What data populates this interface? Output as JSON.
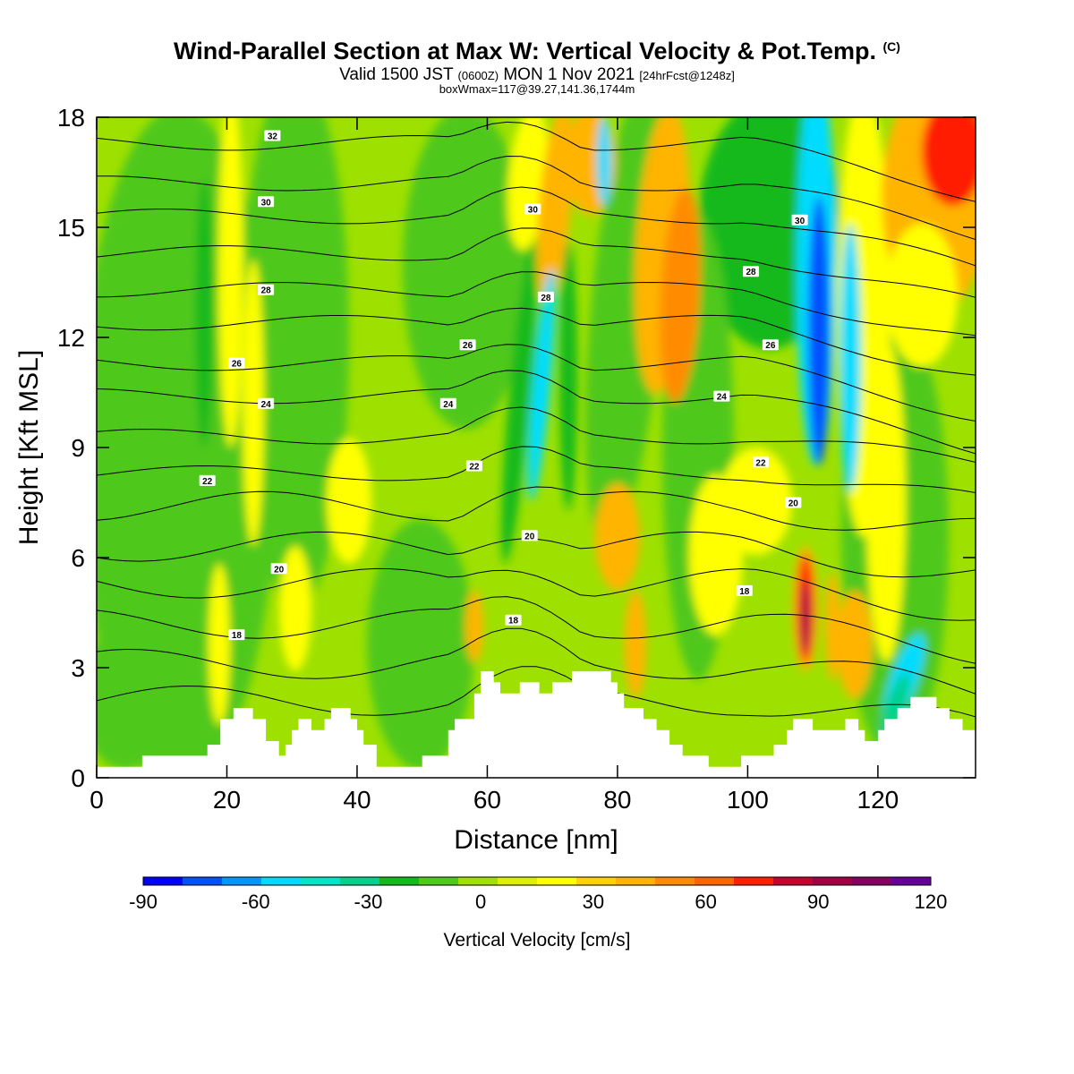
{
  "header": {
    "title_main": "Wind-Parallel Section at Max W: Vertical Velocity & Pot.Temp.",
    "title_copyright": "(C)",
    "subtitle_a": "Valid 1500 JST",
    "subtitle_b": "(0600Z)",
    "subtitle_c": "MON 1 Nov 2021",
    "subtitle_d": "[24hrFcst@1248z]",
    "subtitle2": "boxWmax=117@39.27,141.36,1744m"
  },
  "chart_data": {
    "type": "heatmap",
    "xlabel": "Distance [nm]",
    "ylabel": "Height [Kft MSL]",
    "xlim": [
      0,
      135
    ],
    "ylim": [
      0,
      18
    ],
    "x_ticks": [
      "0",
      "20",
      "40",
      "60",
      "80",
      "100",
      "120"
    ],
    "x_tick_values": [
      0,
      20,
      40,
      60,
      80,
      100,
      120
    ],
    "y_ticks": [
      "0",
      "3",
      "6",
      "9",
      "12",
      "15",
      "18"
    ],
    "y_tick_values": [
      0,
      3,
      6,
      9,
      12,
      15,
      18
    ],
    "colorbar": {
      "title": "Vertical Velocity [cm/s]",
      "tick_labels": [
        "-90",
        "-60",
        "-30",
        "0",
        "30",
        "60",
        "90",
        "120"
      ],
      "tick_values": [
        -90,
        -60,
        -30,
        0,
        30,
        60,
        90,
        120
      ],
      "colors": [
        "#0000ff",
        "#0050ff",
        "#0096ff",
        "#00dcff",
        "#00e6c8",
        "#00d28c",
        "#14b91e",
        "#50c81e",
        "#a0e100",
        "#dcf000",
        "#ffff00",
        "#ffd200",
        "#ffb400",
        "#ff8c00",
        "#ff6400",
        "#ff1e00",
        "#c8002d",
        "#a00046",
        "#82005f",
        "#640096"
      ]
    },
    "theta_contour_labels": [
      {
        "label": "32",
        "x": 27,
        "y": 17.5
      },
      {
        "label": "30",
        "x": 26,
        "y": 15.7
      },
      {
        "label": "30",
        "x": 67,
        "y": 15.5
      },
      {
        "label": "30",
        "x": 108,
        "y": 15.2
      },
      {
        "label": "28",
        "x": 26,
        "y": 13.3
      },
      {
        "label": "28",
        "x": 69,
        "y": 13.1
      },
      {
        "label": "28",
        "x": 100.5,
        "y": 13.8
      },
      {
        "label": "26",
        "x": 21.5,
        "y": 11.3
      },
      {
        "label": "26",
        "x": 57,
        "y": 11.8
      },
      {
        "label": "26",
        "x": 103.5,
        "y": 11.8
      },
      {
        "label": "24",
        "x": 26,
        "y": 10.2
      },
      {
        "label": "24",
        "x": 54,
        "y": 10.2
      },
      {
        "label": "24",
        "x": 96,
        "y": 10.4
      },
      {
        "label": "22",
        "x": 17,
        "y": 8.1
      },
      {
        "label": "22",
        "x": 58,
        "y": 8.5
      },
      {
        "label": "22",
        "x": 102,
        "y": 8.6
      },
      {
        "label": "20",
        "x": 28,
        "y": 5.7
      },
      {
        "label": "20",
        "x": 66.5,
        "y": 6.6
      },
      {
        "label": "20",
        "x": 107,
        "y": 7.5
      },
      {
        "label": "18",
        "x": 21.5,
        "y": 3.9
      },
      {
        "label": "18",
        "x": 64,
        "y": 4.3
      },
      {
        "label": "18",
        "x": 99.5,
        "y": 5.1
      }
    ]
  }
}
